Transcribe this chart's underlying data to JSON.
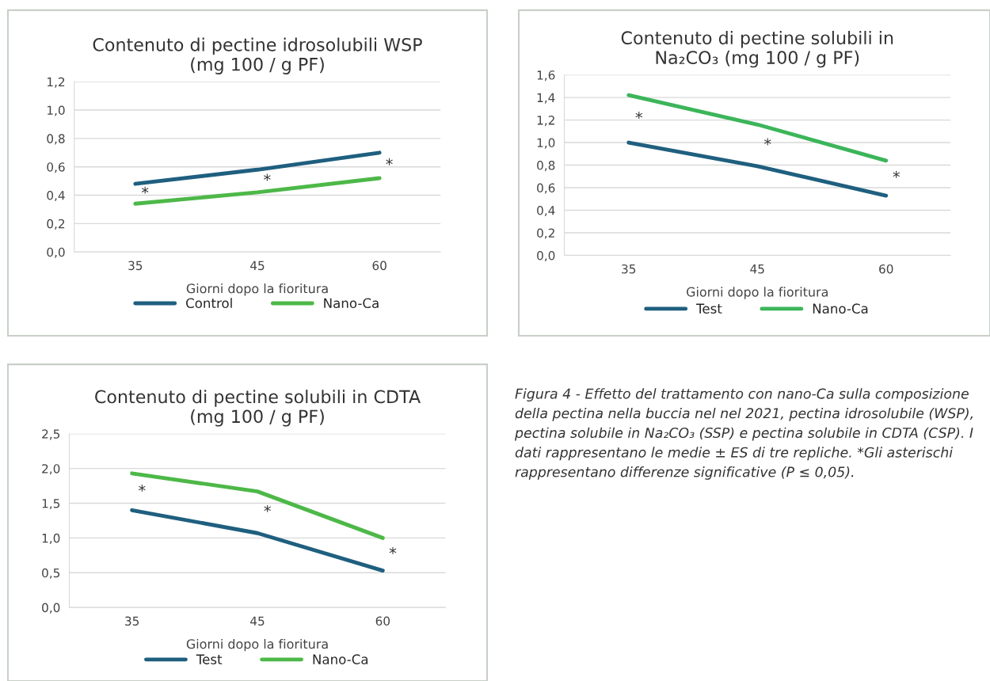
{
  "chart_data": [
    {
      "type": "line",
      "title": "Contenuto di pectine idrosolubili WSP\n(mg 100 / g PF)",
      "xlabel": "Giorni dopo la fioritura",
      "categories": [
        "35",
        "45",
        "60"
      ],
      "series": [
        {
          "name": "Control",
          "color": "#1f5f7f",
          "values": [
            0.48,
            0.58,
            0.7
          ]
        },
        {
          "name": "Nano-Ca",
          "color": "#4db848",
          "values": [
            0.34,
            0.42,
            0.52
          ]
        }
      ],
      "ylim": [
        0,
        1.2
      ],
      "yticks": [
        {
          "value": 0,
          "label": "0,0"
        },
        {
          "value": 0.2,
          "label": "0,2"
        },
        {
          "value": 0.4,
          "label": "0,4"
        },
        {
          "value": 0.6,
          "label": "0,6"
        },
        {
          "value": 0.8,
          "label": "0,8"
        },
        {
          "value": 1.0,
          "label": "1,0"
        },
        {
          "value": 1.2,
          "label": "1,2"
        }
      ],
      "grid": "y",
      "legend": "bottom",
      "marker": "none",
      "line_style": "solid",
      "annotations": [
        "*",
        "*",
        "*"
      ]
    },
    {
      "type": "line",
      "title": "Contenuto di pectine solubili in\nNa₂CO₃ (mg 100 / g PF)",
      "xlabel": "Giorni dopo la fioritura",
      "categories": [
        "35",
        "45",
        "60"
      ],
      "series": [
        {
          "name": "Test",
          "color": "#1f5f7f",
          "values": [
            1.0,
            0.79,
            0.53
          ]
        },
        {
          "name": "Nano-Ca",
          "color": "#3cb55a",
          "values": [
            1.42,
            1.16,
            0.84
          ]
        }
      ],
      "ylim": [
        0,
        1.6
      ],
      "yticks": [
        {
          "value": 0,
          "label": "0,0"
        },
        {
          "value": 0.2,
          "label": "0,2"
        },
        {
          "value": 0.4,
          "label": "0,4"
        },
        {
          "value": 0.6,
          "label": "0,6"
        },
        {
          "value": 0.8,
          "label": "0,8"
        },
        {
          "value": 1.0,
          "label": "1,0"
        },
        {
          "value": 1.2,
          "label": "1,2"
        },
        {
          "value": 1.4,
          "label": "1,4"
        },
        {
          "value": 1.6,
          "label": "1,6"
        }
      ],
      "grid": "y",
      "legend": "bottom",
      "marker": "none",
      "line_style": "solid",
      "annotations": [
        "*",
        "*",
        "*"
      ]
    },
    {
      "type": "line",
      "title": "Contenuto di pectine solubili in CDTA\n(mg 100 / g PF)",
      "xlabel": "Giorni dopo la fioritura",
      "categories": [
        "35",
        "45",
        "60"
      ],
      "series": [
        {
          "name": "Test",
          "color": "#1f5f7f",
          "values": [
            1.4,
            1.07,
            0.53
          ]
        },
        {
          "name": "Nano-Ca",
          "color": "#4db848",
          "values": [
            1.93,
            1.67,
            1.0
          ]
        }
      ],
      "ylim": [
        0,
        2.5
      ],
      "yticks": [
        {
          "value": 0,
          "label": "0,0"
        },
        {
          "value": 0.5,
          "label": "0,5"
        },
        {
          "value": 1.0,
          "label": "1,0"
        },
        {
          "value": 1.5,
          "label": "1,5"
        },
        {
          "value": 2.0,
          "label": "2,0"
        },
        {
          "value": 2.5,
          "label": "2,5"
        }
      ],
      "grid": "y",
      "legend": "bottom",
      "marker": "none",
      "line_style": "solid",
      "annotations": [
        "*",
        "*",
        "*"
      ]
    },
    {
      "type": "other",
      "annotations": [
        "Figura 4 - Effetto del trattamento con nano-Ca sulla composizione della pectina nella buccia nel nel 2021, pectina idrosolubile (WSP), pectina solubile in Na₂CO₃ (SSP) e pectina solubile in CDTA (CSP). I dati rappresentano le medie ± ES di tre repliche. *Gli asterischi rappresentano differenze significative (P ≤ 0,05)."
      ]
    }
  ]
}
